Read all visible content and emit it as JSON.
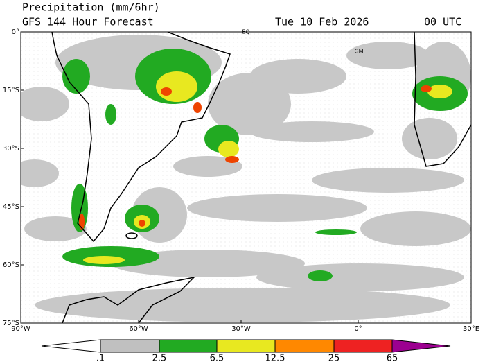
{
  "header": {
    "title": "Precipitation (mm/6hr)",
    "subtitle": "GFS 144 Hour Forecast",
    "date": "Tue 10 Feb 2026",
    "time": "00 UTC"
  },
  "map": {
    "lat_labels": [
      "0°",
      "15°S",
      "30°S",
      "45°S",
      "60°S",
      "75°S"
    ],
    "lon_labels": [
      "90°W",
      "60°W",
      "30°W",
      "0°",
      "30°E"
    ],
    "markers": [
      "EQ",
      "GM"
    ]
  },
  "colorbar": {
    "labels": [
      ".1",
      "2.5",
      "6.5",
      "12.5",
      "25",
      "65"
    ]
  }
}
